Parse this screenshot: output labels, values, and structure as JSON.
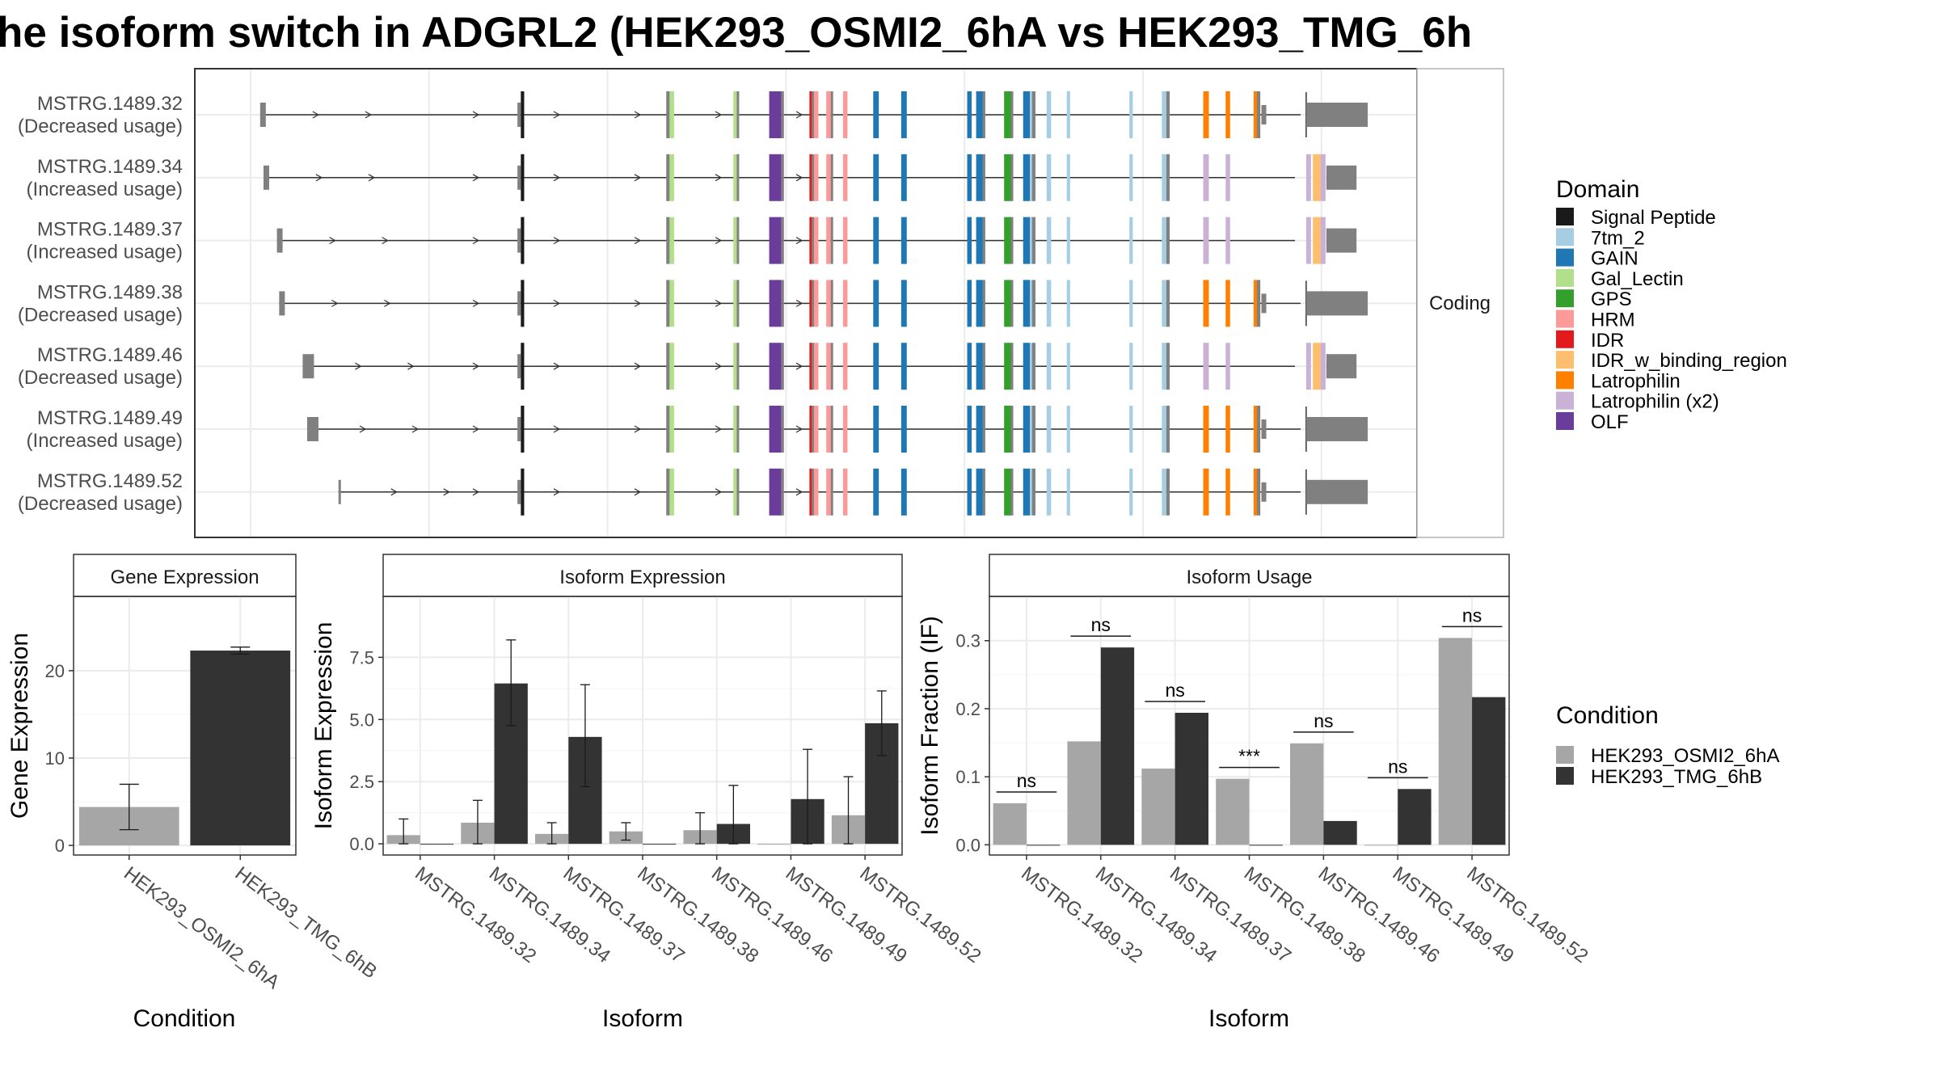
{
  "title": "he isoform switch in ADGRL2 (HEK293_OSMI2_6hA vs HEK293_TMG_6h",
  "colors": {
    "cond_a": "#a6a6a6",
    "cond_b": "#333333",
    "exon": "#808080"
  },
  "transcript_panel": {
    "facet_label": "Coding",
    "x_range": [
      0,
      1000
    ],
    "transcripts": [
      {
        "id": "MSTRG.1489.32",
        "usage": "(Decreased usage)",
        "start": 10,
        "end": 1000
      },
      {
        "id": "MSTRG.1489.34",
        "usage": "(Increased usage)",
        "start": 13,
        "end": 975
      },
      {
        "id": "MSTRG.1489.37",
        "usage": "(Increased usage)",
        "start": 25,
        "end": 975
      },
      {
        "id": "MSTRG.1489.38",
        "usage": "(Decreased usage)",
        "start": 27,
        "end": 1000
      },
      {
        "id": "MSTRG.1489.46",
        "usage": "(Decreased usage)",
        "start": 48,
        "end": 975
      },
      {
        "id": "MSTRG.1489.49",
        "usage": "(Increased usage)",
        "start": 52,
        "end": 1000
      },
      {
        "id": "MSTRG.1489.52",
        "usage": "(Decreased usage)",
        "start": 80,
        "end": 1000
      }
    ],
    "domain_legend_title": "Domain",
    "domains": [
      {
        "name": "Signal Peptide",
        "color": "#1a1a1a"
      },
      {
        "name": "7tm_2",
        "color": "#a6cee3"
      },
      {
        "name": "GAIN",
        "color": "#1f78b4"
      },
      {
        "name": "Gal_Lectin",
        "color": "#b2df8a"
      },
      {
        "name": "GPS",
        "color": "#33a02c"
      },
      {
        "name": "HRM",
        "color": "#fb9a99"
      },
      {
        "name": "IDR",
        "color": "#e31a1c"
      },
      {
        "name": "IDR_w_binding_region",
        "color": "#fdbf6f"
      },
      {
        "name": "Latrophilin",
        "color": "#ff7f00"
      },
      {
        "name": "Latrophilin (x2)",
        "color": "#cab2d6"
      },
      {
        "name": "OLF",
        "color": "#6a3d9a"
      }
    ]
  },
  "condition_legend": {
    "title": "Condition",
    "items": [
      {
        "name": "HEK293_OSMI2_6hA",
        "color": "#a6a6a6"
      },
      {
        "name": "HEK293_TMG_6hB",
        "color": "#333333"
      }
    ]
  },
  "chart_data": [
    {
      "type": "bar",
      "title": "Gene Expression",
      "xlabel": "Condition",
      "ylabel": "Gene Expression",
      "categories": [
        "HEK293_OSMI2_6hA",
        "HEK293_TMG_6hB"
      ],
      "values": [
        4.4,
        22.3
      ],
      "error_low": [
        1.8,
        21.9
      ],
      "error_high": [
        7.0,
        22.7
      ],
      "ylim": [
        -1.1,
        28.5
      ],
      "yticks": [
        0,
        10,
        20
      ]
    },
    {
      "type": "bar",
      "title": "Isoform Expression",
      "xlabel": "Isoform",
      "ylabel": "Isoform Expression",
      "categories": [
        "MSTRG.1489.32",
        "MSTRG.1489.34",
        "MSTRG.1489.37",
        "MSTRG.1489.38",
        "MSTRG.1489.46",
        "MSTRG.1489.49",
        "MSTRG.1489.52"
      ],
      "ylim": [
        -0.45,
        9.95
      ],
      "yticks": [
        0.0,
        2.5,
        5.0,
        7.5
      ],
      "ytick_labels": [
        "0.0",
        "2.5",
        "5.0",
        "7.5"
      ],
      "series": [
        {
          "name": "HEK293_OSMI2_6hA",
          "values": [
            0.35,
            0.85,
            0.4,
            0.5,
            0.55,
            0.0,
            1.15
          ],
          "error_low": [
            0.0,
            0.0,
            0.0,
            0.15,
            0.0,
            0.0,
            0.0
          ],
          "error_high": [
            1.0,
            1.75,
            0.85,
            0.85,
            1.25,
            0.0,
            2.7
          ]
        },
        {
          "name": "HEK293_TMG_6hB",
          "values": [
            0.0,
            6.45,
            4.3,
            0.0,
            0.8,
            1.8,
            4.85
          ],
          "error_low": [
            0.0,
            4.75,
            2.3,
            0.0,
            0.0,
            0.0,
            3.55
          ],
          "error_high": [
            0.0,
            8.2,
            6.4,
            0.0,
            2.35,
            3.8,
            6.15
          ]
        }
      ]
    },
    {
      "type": "bar",
      "title": "Isoform Usage",
      "xlabel": "Isoform",
      "ylabel": "Isoform Fraction (IF)",
      "categories": [
        "MSTRG.1489.32",
        "MSTRG.1489.34",
        "MSTRG.1489.37",
        "MSTRG.1489.38",
        "MSTRG.1489.46",
        "MSTRG.1489.49",
        "MSTRG.1489.52"
      ],
      "ylim": [
        -0.015,
        0.365
      ],
      "yticks": [
        0.0,
        0.1,
        0.2,
        0.3
      ],
      "ytick_labels": [
        "0.0",
        "0.1",
        "0.2",
        "0.3"
      ],
      "series": [
        {
          "name": "HEK293_OSMI2_6hA",
          "values": [
            0.061,
            0.152,
            0.112,
            0.097,
            0.149,
            0.0,
            0.304
          ]
        },
        {
          "name": "HEK293_TMG_6hB",
          "values": [
            0.0,
            0.29,
            0.194,
            0.0,
            0.035,
            0.082,
            0.217
          ]
        }
      ],
      "significance": [
        "ns",
        "ns",
        "ns",
        "***",
        "ns",
        "ns",
        "ns"
      ]
    }
  ]
}
